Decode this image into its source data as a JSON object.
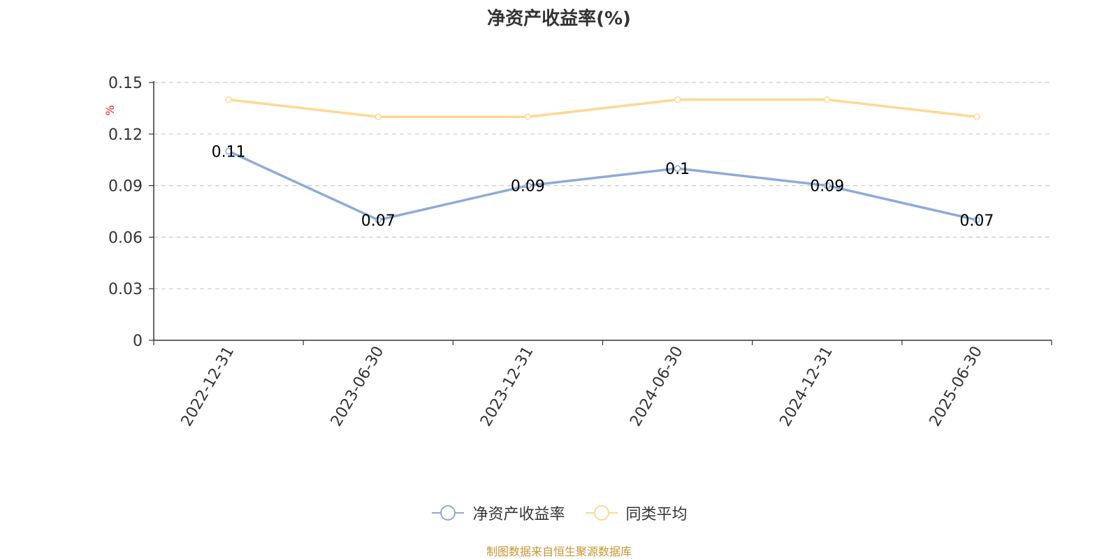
{
  "title": "净资产收益率(%)",
  "source": "制图数据来自恒生聚源数据库",
  "chart_data": {
    "type": "line",
    "title": "净资产收益率(%)",
    "xlabel": "",
    "ylabel": "%",
    "x": [
      "2022-12-31",
      "2023-06-30",
      "2023-12-31",
      "2024-06-30",
      "2024-12-31",
      "2025-06-30"
    ],
    "y_ticks": [
      "0",
      "0.03",
      "0.06",
      "0.09",
      "0.12",
      "0.15"
    ],
    "ylim": [
      0,
      0.15
    ],
    "grid": true,
    "legend_position": "bottom",
    "series": [
      {
        "name": "净资产收益率",
        "color": "#8eaad8",
        "values": [
          0.11,
          0.07,
          0.09,
          0.1,
          0.09,
          0.07
        ],
        "labels": [
          "0.11",
          "0.07",
          "0.09",
          "0.1",
          "0.09",
          "0.07"
        ]
      },
      {
        "name": "同类平均",
        "color": "#fcd993",
        "values": [
          0.14,
          0.13,
          0.13,
          0.14,
          0.14,
          0.13
        ]
      }
    ]
  }
}
